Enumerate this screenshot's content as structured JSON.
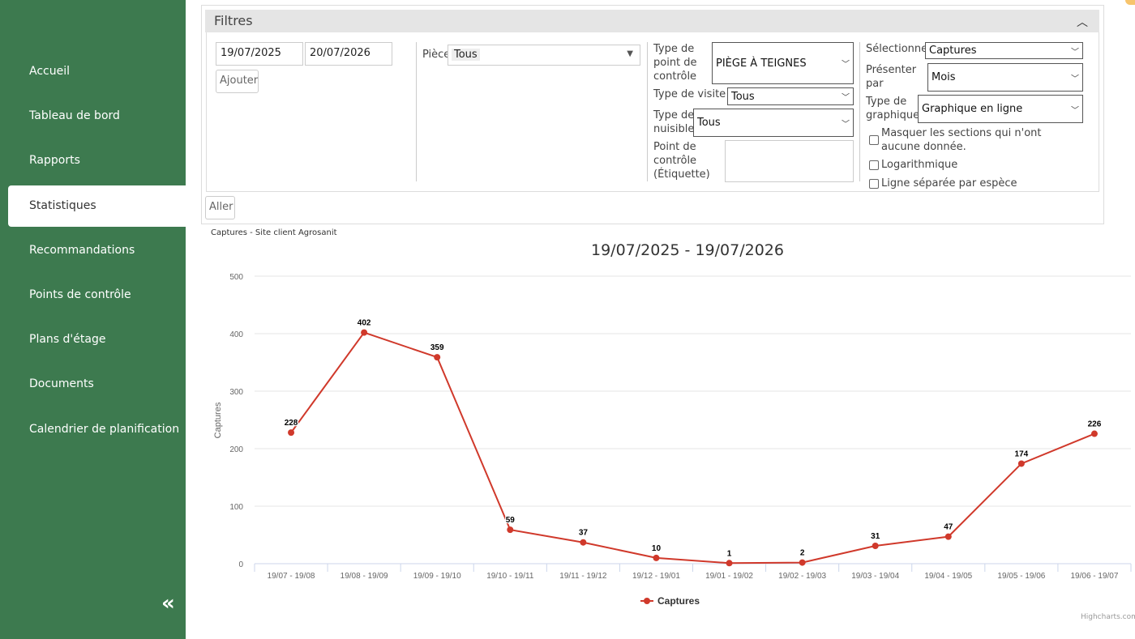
{
  "sidebar": {
    "items": [
      {
        "label": "Accueil"
      },
      {
        "label": "Tableau de bord"
      },
      {
        "label": "Rapports"
      },
      {
        "label": "Statistiques",
        "active": true
      },
      {
        "label": "Recommandations"
      },
      {
        "label": "Points de contrôle"
      },
      {
        "label": "Plans d'étage"
      },
      {
        "label": "Documents"
      },
      {
        "label": "Calendrier de planification"
      }
    ],
    "collapse_icon": "double-chevron-left-icon",
    "collapse_glyph": "«"
  },
  "filters": {
    "title": "Filtres",
    "toggle_glyph": "︿",
    "date_from": "19/07/2025",
    "date_to": "20/07/2026",
    "add_label": "Ajouter",
    "piece_label": "Pièce",
    "piece_value": "Tous",
    "checkpoint_type_label": "Type de point de contrôle",
    "checkpoint_type_value": "PIÈGE À TEIGNES",
    "visit_type_label": "Type de visite",
    "visit_type_value": "Tous",
    "pest_type_label": "Type de nuisible",
    "pest_type_value": "Tous",
    "checkpoint_tag_label": "Point de contrôle (Étiquette)",
    "checkpoint_tag_value": "",
    "select_label": "Sélectionnez",
    "select_value": "Captures",
    "present_by_label": "Présenter par",
    "present_by_value": "Mois",
    "graph_type_label": "Type de graphique",
    "graph_type_value": "Graphique en ligne",
    "hide_empty_label": "Masquer les sections qui n'ont aucune donnée.",
    "log_label": "Logarithmique",
    "separate_line_label": "Ligne séparée par espèce",
    "go_label": "Aller"
  },
  "chart_caption": "Captures - Site client Agrosanit",
  "chart_data": {
    "type": "line",
    "title": "19/07/2025 - 19/07/2026",
    "xlabel": "",
    "ylabel": "Captures",
    "ylim": [
      0,
      500
    ],
    "yticks": [
      "0",
      "100",
      "200",
      "300",
      "400",
      "500"
    ],
    "categories": [
      "19/07 - 19/08",
      "19/08 - 19/09",
      "19/09 - 19/10",
      "19/10 - 19/11",
      "19/11 - 19/12",
      "19/12 - 19/01",
      "19/01 - 19/02",
      "19/02 - 19/03",
      "19/03 - 19/04",
      "19/04 - 19/05",
      "19/05 - 19/06",
      "19/06 - 19/07"
    ],
    "series": [
      {
        "name": "Captures",
        "values": [
          228,
          402,
          359,
          59,
          37,
          10,
          1,
          2,
          31,
          47,
          174,
          226
        ],
        "color": "#d0392b"
      }
    ],
    "legend": "bottom-center",
    "grid": true
  },
  "credits": "Highcharts.com"
}
